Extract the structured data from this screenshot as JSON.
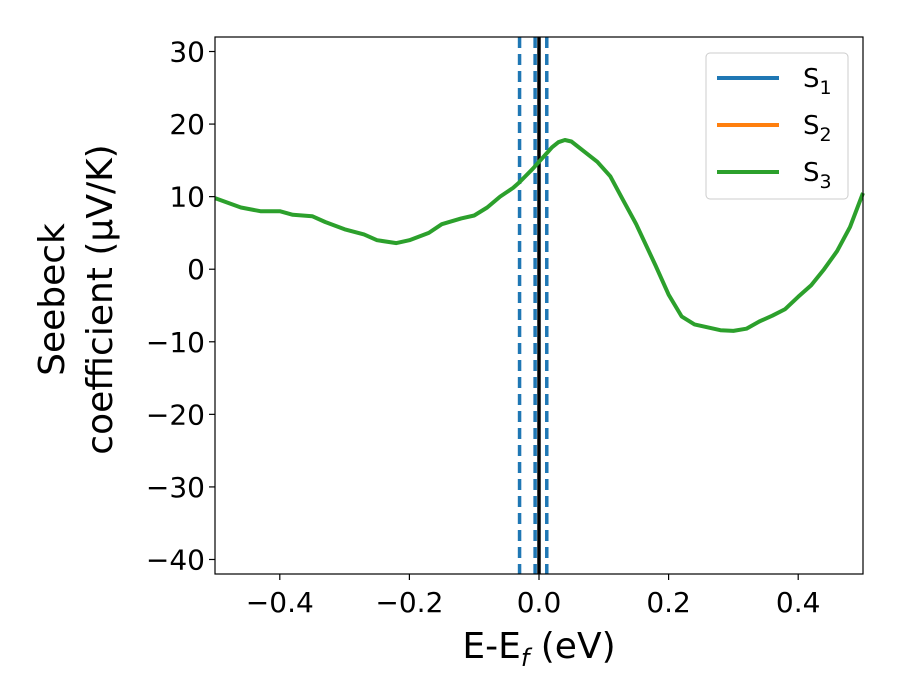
{
  "chart_data": {
    "type": "line",
    "title": "",
    "xlabel": "E-E_f (eV)",
    "xlabel_parts": {
      "main": "E-E",
      "sub": "f",
      "rest": " (eV)"
    },
    "ylabel_line1": "Seebeck",
    "ylabel_line2": "coefficient  (μV/K)",
    "xlim": [
      -0.5,
      0.5
    ],
    "ylim": [
      -42,
      32
    ],
    "xticks": [
      -0.4,
      -0.2,
      0.0,
      0.2,
      0.4
    ],
    "xtick_labels": [
      "−0.4",
      "−0.2",
      "0.0",
      "0.2",
      "0.4"
    ],
    "yticks": [
      30,
      20,
      10,
      0,
      -10,
      -20,
      -30,
      -40
    ],
    "ytick_labels": [
      "30",
      "20",
      "10",
      "0",
      "−10",
      "−20",
      "−30",
      "−40"
    ],
    "legend_position": "top-right",
    "series": [
      {
        "name": "S",
        "sub": "1",
        "color": "#1f77b4",
        "x": [],
        "y": []
      },
      {
        "name": "S",
        "sub": "2",
        "color": "#ff7f0e",
        "x": [],
        "y": []
      },
      {
        "name": "S",
        "sub": "3",
        "color": "#2ca02c",
        "x": [
          -0.5,
          -0.46,
          -0.43,
          -0.4,
          -0.38,
          -0.35,
          -0.33,
          -0.3,
          -0.27,
          -0.25,
          -0.22,
          -0.2,
          -0.17,
          -0.15,
          -0.12,
          -0.1,
          -0.08,
          -0.06,
          -0.04,
          -0.03,
          -0.02,
          -0.01,
          0.0,
          0.01,
          0.02,
          0.03,
          0.04,
          0.05,
          0.07,
          0.09,
          0.11,
          0.13,
          0.15,
          0.18,
          0.2,
          0.22,
          0.24,
          0.26,
          0.28,
          0.3,
          0.32,
          0.34,
          0.36,
          0.38,
          0.4,
          0.42,
          0.44,
          0.46,
          0.48,
          0.5
        ],
        "y": [
          9.8,
          8.5,
          8.0,
          8.0,
          7.5,
          7.3,
          6.5,
          5.5,
          4.8,
          4.0,
          3.6,
          4.0,
          5.0,
          6.2,
          7.0,
          7.4,
          8.5,
          10.0,
          11.2,
          12.0,
          12.9,
          13.8,
          14.8,
          15.8,
          16.8,
          17.5,
          17.8,
          17.6,
          16.2,
          14.8,
          12.8,
          9.5,
          6.2,
          0.5,
          -3.5,
          -6.5,
          -7.6,
          -8.0,
          -8.4,
          -8.5,
          -8.2,
          -7.2,
          -6.4,
          -5.5,
          -3.8,
          -2.2,
          0.0,
          2.5,
          5.8,
          10.5
        ]
      }
    ],
    "reference_lines": [
      {
        "x": 0.0,
        "style": "solid",
        "color": "#000000"
      },
      {
        "x": -0.03,
        "style": "dashed",
        "color": "#1f77b4"
      },
      {
        "x": -0.006,
        "style": "dashed",
        "color": "#1f77b4"
      },
      {
        "x": 0.012,
        "style": "dashed",
        "color": "#1f77b4"
      }
    ]
  }
}
